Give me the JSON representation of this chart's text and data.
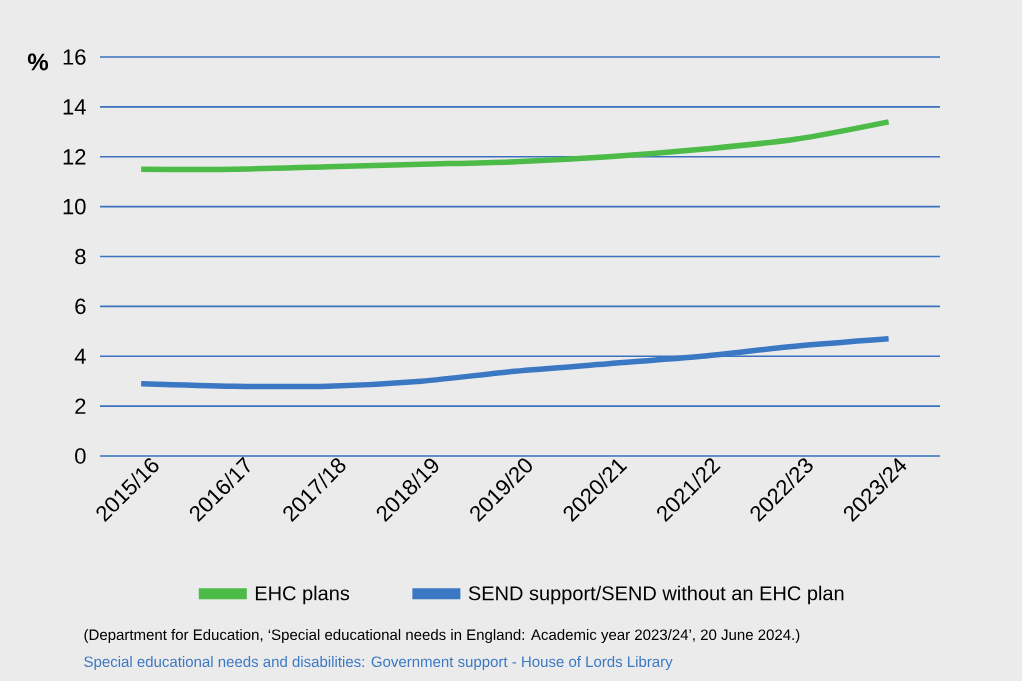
{
  "chart_data": {
    "type": "line",
    "ylabel": "%",
    "categories": [
      "2015/16",
      "2016/17",
      "2017/18",
      "2018/19",
      "2019/20",
      "2020/21",
      "2021/22",
      "2022/23",
      "2023/24"
    ],
    "series": [
      {
        "name": "EHC plans",
        "color": "#4cbb47",
        "values": [
          11.5,
          11.5,
          11.6,
          11.7,
          11.8,
          12.0,
          12.3,
          12.7,
          13.4
        ]
      },
      {
        "name": "SEND support/SEND without an EHC plan",
        "color": "#3b78c4",
        "values": [
          2.9,
          2.8,
          2.8,
          3.0,
          3.4,
          3.7,
          4.0,
          4.4,
          4.7
        ]
      }
    ],
    "ylim": [
      0,
      16
    ],
    "yticks": [
      0,
      2,
      4,
      6,
      8,
      10,
      12,
      14,
      16
    ],
    "grid": "y",
    "legend": "bottom",
    "marker": "none",
    "line_style": "solid",
    "annotations": [
      "(Department for Education, ‘Special educational needs in England: Academic year 2023/24’, 20 June 2024.)",
      "Special educational needs and disabilities: Government support - House of Lords Library"
    ]
  }
}
